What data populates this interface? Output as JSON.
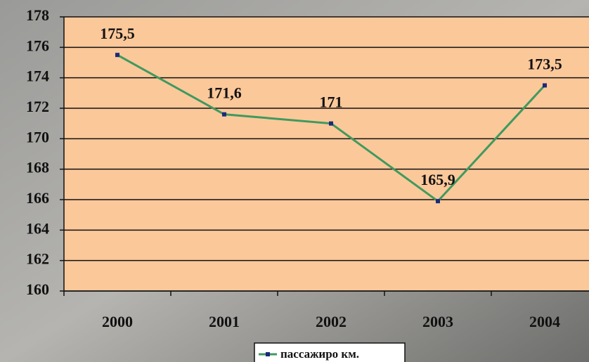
{
  "chart_data": {
    "type": "line",
    "categories": [
      "2000",
      "2001",
      "2002",
      "2003",
      "2004"
    ],
    "series": [
      {
        "name": "пассажиро км.",
        "color": "#3f9a5e",
        "marker_color": "#1a2a7a",
        "values": [
          175.5,
          171.6,
          171,
          165.9,
          173.5
        ],
        "value_labels": [
          "175,5",
          "171,6",
          "171",
          "165,9",
          "173,5"
        ]
      }
    ],
    "ylim": [
      160,
      178
    ],
    "yticks": [
      160,
      162,
      164,
      166,
      168,
      170,
      172,
      174,
      176,
      178
    ],
    "grid": true,
    "legend": "bottom",
    "plot_color": "#fbc89a"
  }
}
